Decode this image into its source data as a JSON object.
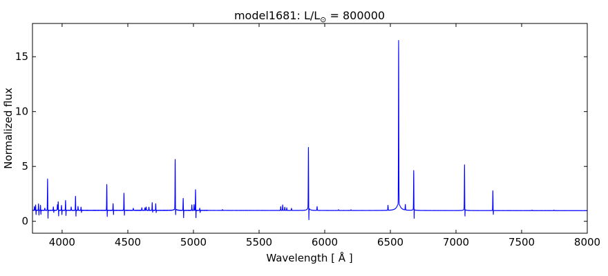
{
  "figure": {
    "title_pre": "model1681: L/L",
    "title_sub": "⊙",
    "title_post": " = 800000"
  },
  "chart_data": {
    "type": "line",
    "title": "model1681: L/L⊙ = 800000",
    "xlabel": "Wavelength [ Å ]",
    "ylabel": "Normalized flux",
    "legend": null,
    "grid": false,
    "line_color": "#0000ff",
    "frame_color": "#000000",
    "background_color": "#ffffff",
    "xlim": [
      3774,
      8000
    ],
    "ylim": [
      -1.09,
      18.03
    ],
    "xticks": [
      4000,
      4500,
      5000,
      5500,
      6000,
      6500,
      7000,
      7500,
      8000
    ],
    "yticks": [
      0,
      5,
      10,
      15
    ],
    "continuum": {
      "flux_at_blue_end": 1.0,
      "flux_at_red_end": 0.97
    },
    "noise": {
      "amp_blue": 0.018,
      "amp_red": 0.007,
      "split_wl": 5110
    },
    "emission_lines": [
      {
        "wl": 3789,
        "peak": 1.35
      },
      {
        "wl": 3798,
        "peak": 1.5,
        "dip": 0.6
      },
      {
        "wl": 3820,
        "peak": 1.6,
        "dip": 0.55
      },
      {
        "wl": 3835,
        "peak": 1.45,
        "dip": 0.6
      },
      {
        "wl": 3868,
        "peak": 1.2
      },
      {
        "wl": 3889,
        "peak": 3.85,
        "dip": 0.28
      },
      {
        "wl": 3933,
        "peak": 1.3,
        "dip": 0.8
      },
      {
        "wl": 3964,
        "peak": 1.5
      },
      {
        "wl": 3970,
        "peak": 1.8,
        "dip": 0.45
      },
      {
        "wl": 3995,
        "peak": 1.45,
        "dip": 0.6
      },
      {
        "wl": 4026,
        "peak": 1.9,
        "dip": 0.5
      },
      {
        "wl": 4069,
        "peak": 1.3
      },
      {
        "wl": 4102,
        "peak": 2.3,
        "dip": 0.45
      },
      {
        "wl": 4121,
        "peak": 1.35
      },
      {
        "wl": 4144,
        "peak": 1.3,
        "dip": 0.8
      },
      {
        "wl": 4340,
        "peak": 3.35,
        "dip": 0.45
      },
      {
        "wl": 4388,
        "peak": 1.6,
        "dip": 0.6
      },
      {
        "wl": 4471,
        "peak": 2.55,
        "dip": 0.55
      },
      {
        "wl": 4542,
        "peak": 1.2
      },
      {
        "wl": 4607,
        "peak": 1.25
      },
      {
        "wl": 4631,
        "peak": 1.25
      },
      {
        "wl": 4640,
        "peak": 1.3
      },
      {
        "wl": 4661,
        "peak": 1.3
      },
      {
        "wl": 4686,
        "peak": 1.7,
        "dip": 0.85
      },
      {
        "wl": 4713,
        "peak": 1.6,
        "dip": 0.8
      },
      {
        "wl": 4861,
        "peak": 5.65,
        "dip": 0.67,
        "wing_amp": 0.12,
        "wing_gamma": 10
      },
      {
        "wl": 4922,
        "peak": 2.1,
        "dip": 0.3
      },
      {
        "wl": 4988,
        "peak": 1.5
      },
      {
        "wl": 5005,
        "peak": 1.55
      },
      {
        "wl": 5016,
        "peak": 2.9,
        "dip": 0.3
      },
      {
        "wl": 5048,
        "peak": 1.2,
        "dip": 0.8
      },
      {
        "wl": 5221,
        "peak": 1.08
      },
      {
        "wl": 5665,
        "peak": 1.35
      },
      {
        "wl": 5680,
        "peak": 1.5
      },
      {
        "wl": 5696,
        "peak": 1.3
      },
      {
        "wl": 5711,
        "peak": 1.25
      },
      {
        "wl": 5747,
        "peak": 1.2
      },
      {
        "wl": 5876,
        "peak": 6.75,
        "dip": 0.22,
        "wing_amp": 0.25,
        "wing_gamma": 9
      },
      {
        "wl": 5942,
        "peak": 1.35
      },
      {
        "wl": 6105,
        "peak": 1.08
      },
      {
        "wl": 6200,
        "peak": 1.07
      },
      {
        "wl": 6482,
        "peak": 1.45
      },
      {
        "wl": 6563,
        "peak": 16.5,
        "wing_amp": 0.6,
        "wing_gamma": 16
      },
      {
        "wl": 6614,
        "peak": 1.5
      },
      {
        "wl": 6678,
        "peak": 4.65,
        "dip": 0.3,
        "wing_amp": 0.1,
        "wing_gamma": 8
      },
      {
        "wl": 7065,
        "peak": 5.17,
        "dip": 0.55,
        "wing_amp": 0.12,
        "wing_gamma": 8
      },
      {
        "wl": 7281,
        "peak": 2.8,
        "dip": 0.65
      },
      {
        "wl": 7579,
        "peak": 1.05
      },
      {
        "wl": 7746,
        "peak": 1.05
      }
    ]
  }
}
